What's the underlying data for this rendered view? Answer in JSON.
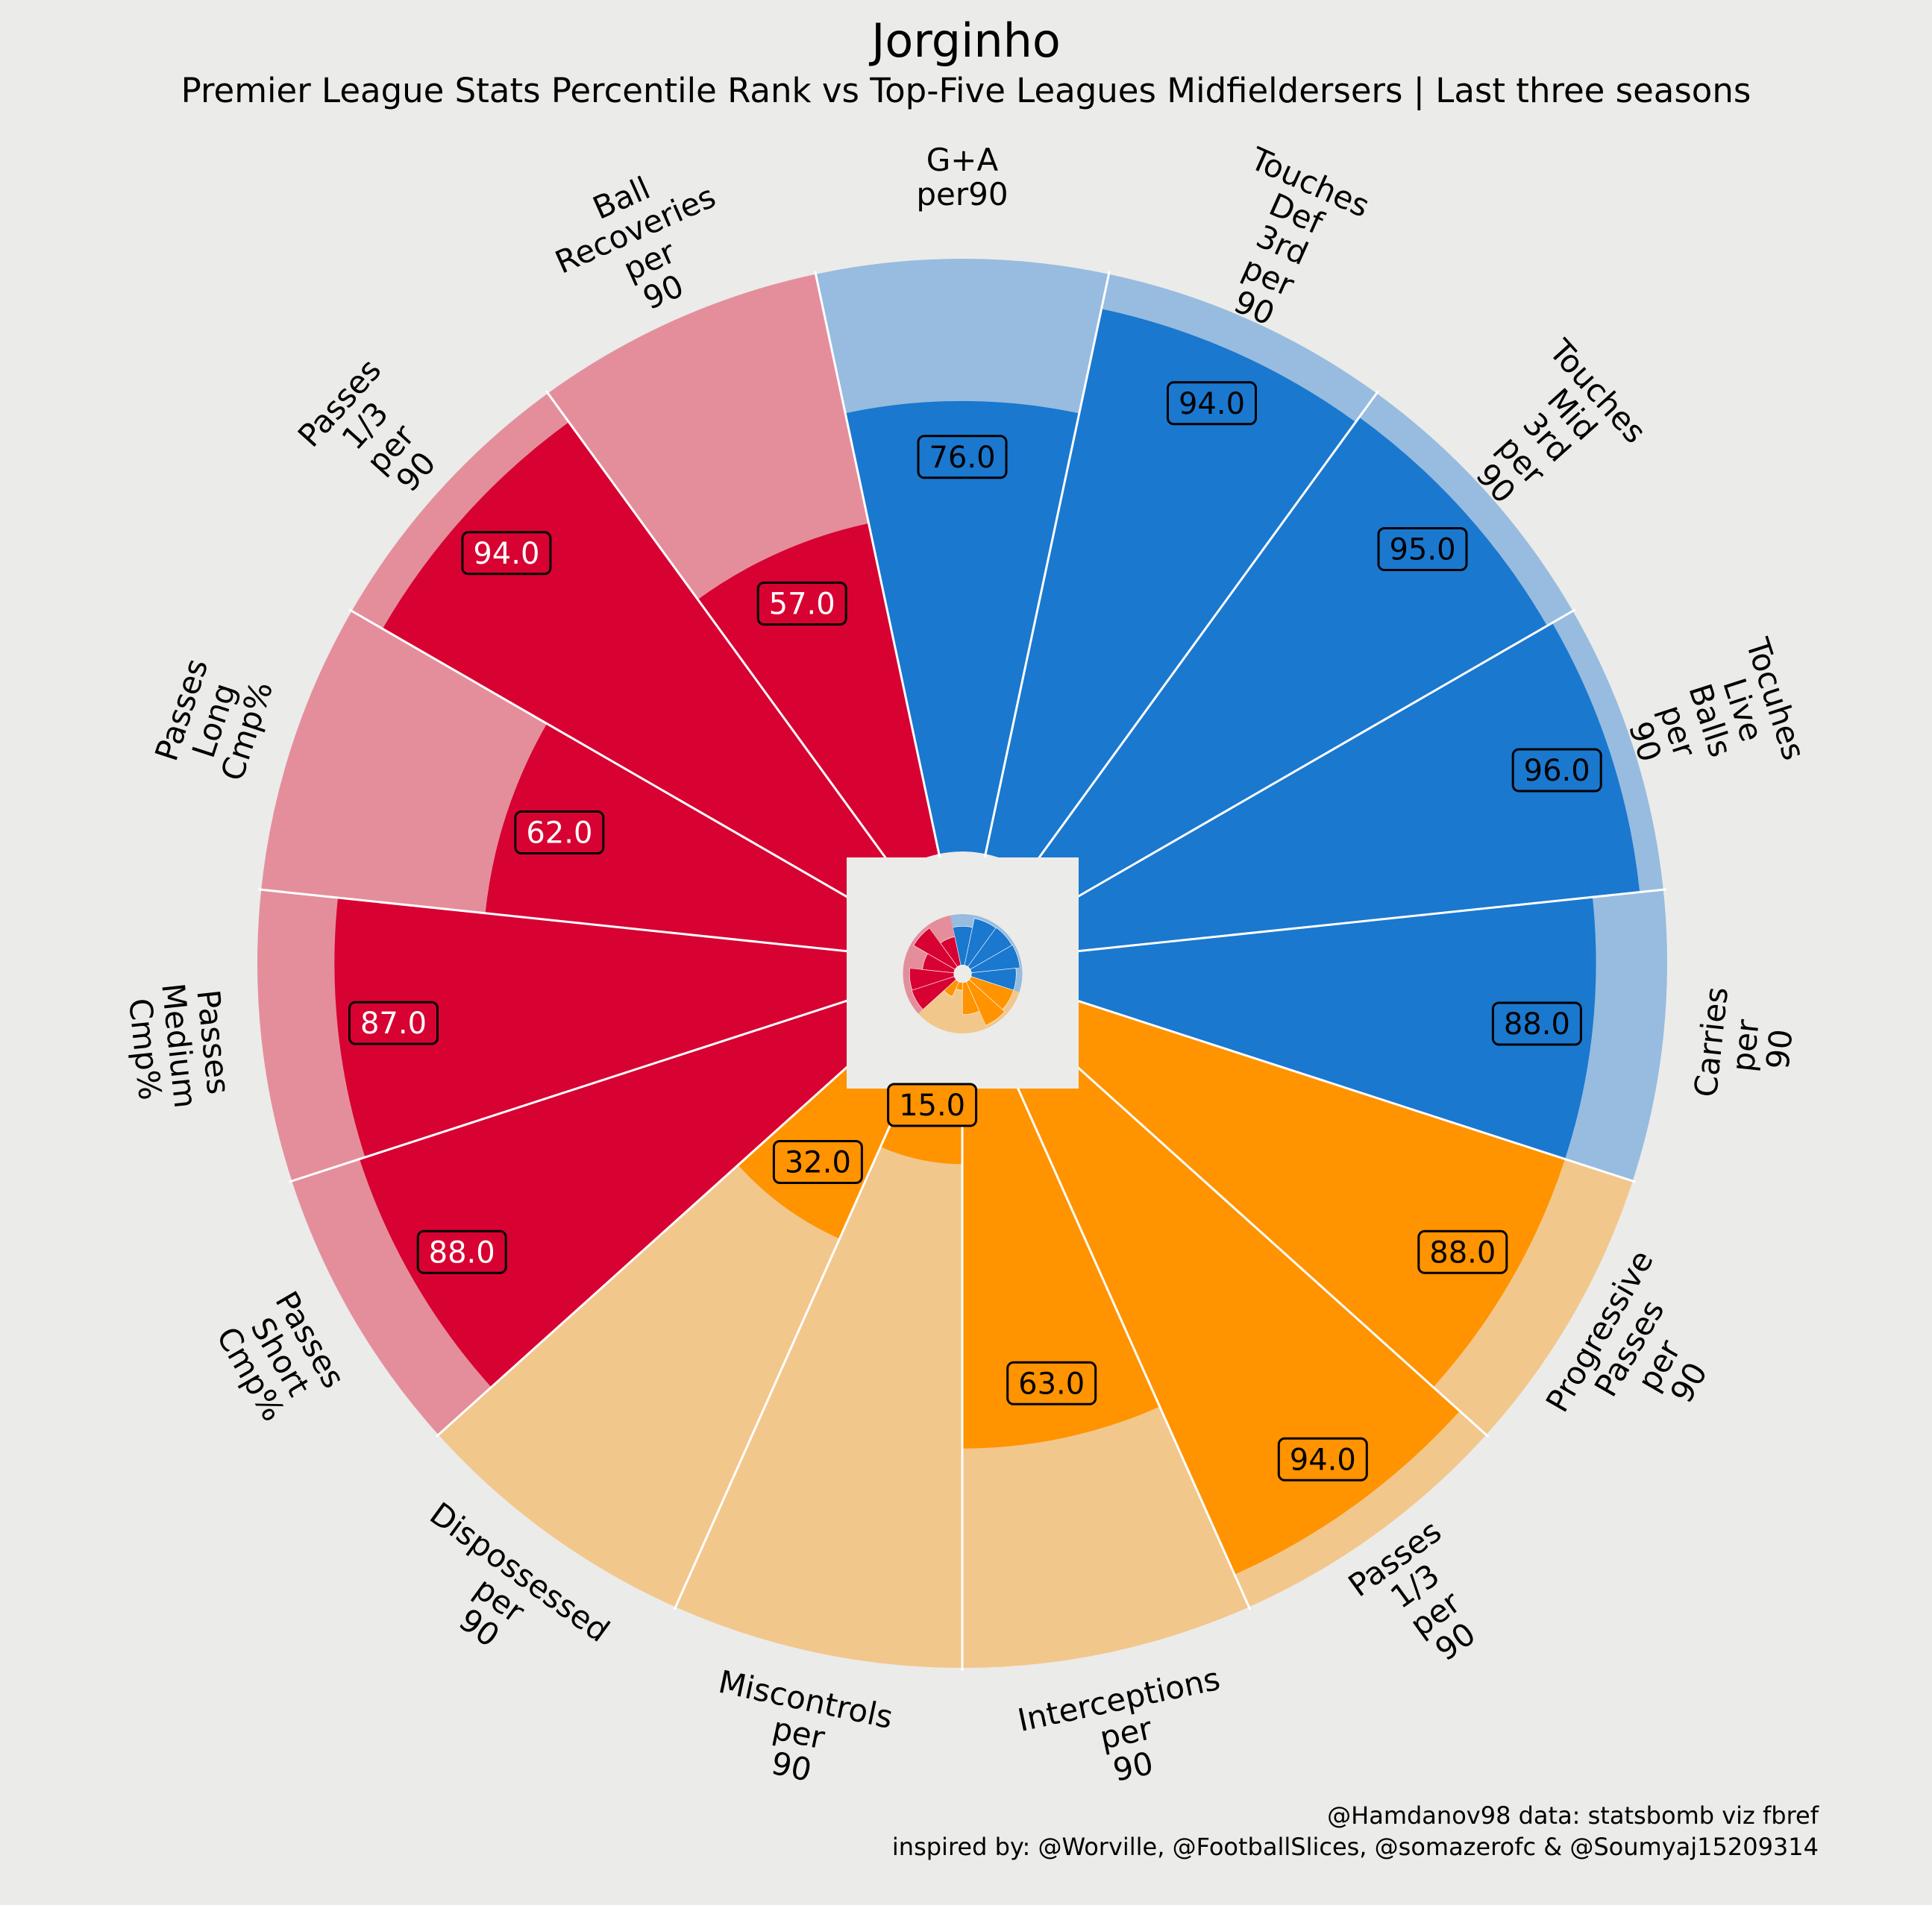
{
  "title": "Jorginho",
  "subtitle": "Premier League Stats Percentile Rank vs Top-Five Leagues Midfieldersers | Last three seasons",
  "credits": {
    "line1": "@Hamdanov98 data: statsbomb viz fbref",
    "line2": "inspired by: @Worville, @FootballSlices, @somazerofc & @Soumyaj15209314"
  },
  "colors": {
    "background": "#ebebe9",
    "red": "#d70232",
    "red_light": "#e48e9c",
    "blue": "#1a78cf",
    "blue_light": "#97bcdf",
    "orange": "#ff9300",
    "orange_light": "#f2c78c"
  },
  "chart_data": {
    "type": "polar-bar",
    "value_range": [
      0,
      100
    ],
    "value_format": "one decimal",
    "groups": [
      "red",
      "blue",
      "orange"
    ],
    "params": [
      {
        "label": "G+A\nper90",
        "value": 76.0,
        "group": "blue"
      },
      {
        "label": "Touches\nDef\n3rd\nper\n90",
        "value": 94.0,
        "group": "blue"
      },
      {
        "label": "Touches\nMid\n3rd\nper\n90",
        "value": 95.0,
        "group": "blue"
      },
      {
        "label": "Tocuhes\nLive\nBalls\nper\n90",
        "value": 96.0,
        "group": "blue"
      },
      {
        "label": "Carries\nper\n90",
        "value": 88.0,
        "group": "blue"
      },
      {
        "label": "Progressive\nPasses\nper\n90",
        "value": 88.0,
        "group": "orange"
      },
      {
        "label": "Passes\n1/3\nper\n90",
        "value": 94.0,
        "group": "orange"
      },
      {
        "label": "Interceptions\nper\n90",
        "value": 63.0,
        "group": "orange"
      },
      {
        "label": "Miscontrols\nper\n90",
        "value": 15.0,
        "group": "orange"
      },
      {
        "label": "Dispossessed\nper\n90",
        "value": 32.0,
        "group": "orange"
      },
      {
        "label": "Passes\nShort\nCmp%",
        "value": 88.0,
        "group": "red"
      },
      {
        "label": "Passes\nMedium\nCmp%",
        "value": 87.0,
        "group": "red"
      },
      {
        "label": "Passes\nLong\nCmp%",
        "value": 62.0,
        "group": "red"
      },
      {
        "label": "Passes\n1/3\nper\n90",
        "value": 94.0,
        "group": "red"
      },
      {
        "label": "Ball\nRecoveries\nper\n90",
        "value": 57.0,
        "group": "red"
      }
    ]
  }
}
